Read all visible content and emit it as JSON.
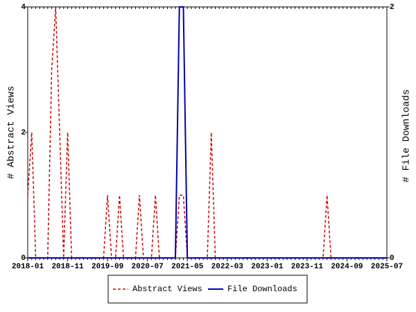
{
  "chart_data": {
    "type": "line",
    "y_label": "# Abstract Views",
    "y2_label": "# File Downloads",
    "categories": [
      "2018-01",
      null,
      null,
      null,
      null,
      null,
      null,
      null,
      null,
      null,
      "2018-11",
      null,
      null,
      null,
      null,
      null,
      null,
      null,
      null,
      null,
      "2019-09",
      null,
      null,
      null,
      null,
      null,
      null,
      null,
      null,
      null,
      "2020-07",
      null,
      null,
      null,
      null,
      null,
      null,
      null,
      null,
      null,
      "2021-05",
      null,
      null,
      null,
      null,
      null,
      null,
      null,
      null,
      null,
      "2022-03",
      null,
      null,
      null,
      null,
      null,
      null,
      null,
      null,
      null,
      "2023-01",
      null,
      null,
      null,
      null,
      null,
      null,
      null,
      null,
      null,
      "2023-11",
      null,
      null,
      null,
      null,
      null,
      null,
      null,
      null,
      null,
      "2024-09",
      null,
      null,
      null,
      null,
      null,
      null,
      null,
      null,
      null,
      "2025-07"
    ],
    "series": [
      {
        "name": "Abstract Views",
        "color": "#cc0000",
        "dashed": true,
        "values": [
          1,
          2,
          0,
          0,
          0,
          0,
          3,
          4,
          2,
          0,
          2,
          0,
          0,
          0,
          0,
          0,
          0,
          0,
          0,
          0,
          1,
          0,
          0,
          1,
          0,
          0,
          0,
          0,
          1,
          0,
          0,
          0,
          1,
          0,
          0,
          0,
          0,
          0,
          1,
          1,
          0,
          0,
          0,
          0,
          0,
          0,
          2,
          0,
          0,
          0,
          0,
          0,
          0,
          0,
          0,
          0,
          0,
          0,
          0,
          0,
          0,
          0,
          0,
          0,
          0,
          0,
          0,
          0,
          0,
          0,
          0,
          0,
          0,
          0,
          0,
          1,
          0,
          0,
          0,
          0,
          0,
          0,
          0,
          0,
          0,
          0,
          0,
          0,
          0,
          0,
          0
        ]
      },
      {
        "name": "File Downloads",
        "color": "#0000aa",
        "dashed": false,
        "axis": "y2",
        "values": [
          0,
          0,
          0,
          0,
          0,
          0,
          0,
          0,
          0,
          0,
          0,
          0,
          0,
          0,
          0,
          0,
          0,
          0,
          0,
          0,
          0,
          0,
          0,
          0,
          0,
          0,
          0,
          0,
          0,
          0,
          0,
          0,
          0,
          0,
          0,
          0,
          0,
          0,
          2,
          2,
          0,
          0,
          0,
          0,
          0,
          0,
          0,
          0,
          0,
          0,
          0,
          0,
          0,
          0,
          0,
          0,
          0,
          0,
          0,
          0,
          0,
          0,
          0,
          0,
          0,
          0,
          0,
          0,
          0,
          0,
          0,
          0,
          0,
          0,
          0,
          0,
          0,
          0,
          0,
          0,
          0,
          0,
          0,
          0,
          0,
          0,
          0,
          0,
          0,
          0,
          0
        ]
      }
    ],
    "ylim": [
      0,
      4
    ],
    "yticks": [
      0,
      2,
      4
    ],
    "y2lim": [
      0,
      2
    ],
    "y2ticks": [
      0,
      2
    ],
    "grid": false,
    "legend": "bottom"
  }
}
